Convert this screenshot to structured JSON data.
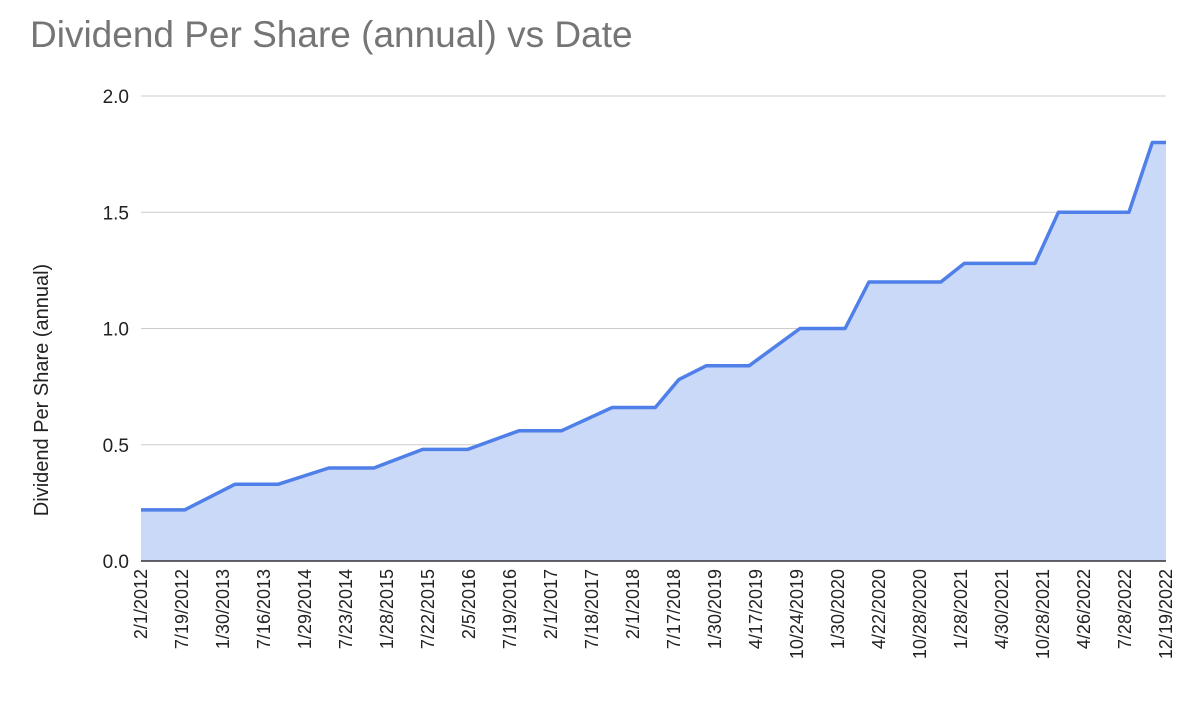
{
  "chart_data": {
    "type": "area",
    "title": "Dividend Per Share (annual) vs Date",
    "xlabel": "",
    "ylabel": "Dividend Per Share (annual)",
    "ylim": [
      0,
      2.0
    ],
    "yticks": [
      "0.0",
      "0.5",
      "1.0",
      "1.5",
      "2.0"
    ],
    "grid": true,
    "legend": "none",
    "colors": {
      "line": "#4f7fe8",
      "fill": "#c9d9f7",
      "grid": "#cccccc",
      "axis": "#333333"
    },
    "xticks": [
      "2/1/2012",
      "7/19/2012",
      "1/30/2013",
      "7/16/2013",
      "1/29/2014",
      "7/23/2014",
      "1/28/2015",
      "7/22/2015",
      "2/5/2016",
      "7/19/2016",
      "2/1/2017",
      "7/18/2017",
      "2/1/2018",
      "7/17/2018",
      "1/30/2019",
      "4/17/2019",
      "10/24/2019",
      "1/30/2020",
      "4/22/2020",
      "10/28/2020",
      "1/28/2021",
      "4/30/2021",
      "10/28/2021",
      "4/26/2022",
      "7/28/2022",
      "12/19/2022"
    ],
    "series": [
      {
        "x": [
          "2/1/2012",
          "7/19/2012",
          "1/30/2013",
          "7/16/2013",
          "1/29/2014",
          "7/23/2014",
          "1/28/2015",
          "7/22/2015",
          "2/5/2016",
          "7/19/2016",
          "2/1/2017",
          "7/18/2017",
          "10/17/2017",
          "2/1/2018",
          "7/17/2018",
          "1/30/2019",
          "4/17/2019",
          "7/24/2019",
          "10/24/2019",
          "1/30/2020",
          "4/22/2020",
          "7/29/2020",
          "10/28/2020",
          "1/28/2021",
          "4/30/2021",
          "7/29/2021",
          "10/28/2021",
          "1/26/2022",
          "4/26/2022",
          "7/28/2022",
          "10/27/2022",
          "12/19/2022"
        ],
        "values": [
          0.22,
          0.22,
          0.33,
          0.33,
          0.4,
          0.4,
          0.48,
          0.48,
          0.56,
          0.56,
          0.66,
          0.66,
          0.78,
          0.84,
          0.84,
          1.0,
          1.0,
          1.0,
          1.2,
          1.2,
          1.2,
          1.2,
          1.28,
          1.28,
          1.28,
          1.28,
          1.5,
          1.5,
          1.5,
          1.5,
          1.8,
          1.8
        ]
      }
    ]
  }
}
